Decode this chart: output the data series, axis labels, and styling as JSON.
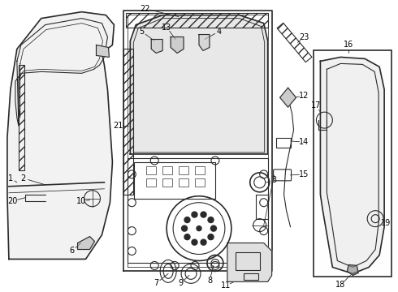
{
  "bg_color": "#ffffff",
  "line_color": "#2a2a2a",
  "text_color": "#000000",
  "figsize": [
    4.9,
    3.6
  ],
  "dpi": 100,
  "lw": 0.8,
  "lw2": 1.2,
  "fs": 6.5
}
